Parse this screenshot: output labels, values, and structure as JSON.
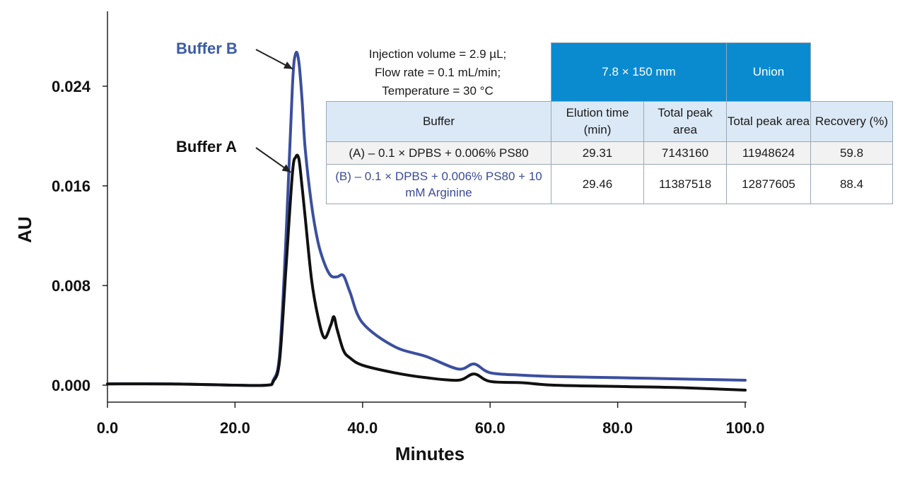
{
  "chart_data": {
    "type": "line",
    "xlabel": "Minutes",
    "ylabel": "AU",
    "xlim": [
      0,
      100
    ],
    "ylim": [
      -0.001,
      0.03
    ],
    "x_ticks": [
      "0.0",
      "20.0",
      "40.0",
      "60.0",
      "80.0",
      "100.0"
    ],
    "y_ticks": [
      "0.000",
      "0.008",
      "0.016",
      "0.024"
    ],
    "grid": false,
    "series": [
      {
        "name": "Buffer B",
        "color": "#3b4f9e",
        "x": [
          0,
          10,
          20,
          25,
          26,
          27,
          28,
          29,
          29.5,
          30,
          30.5,
          31,
          32,
          33,
          34,
          35,
          36,
          37,
          38,
          40,
          45,
          50,
          55,
          57.5,
          60,
          65,
          70,
          80,
          90,
          100
        ],
        "y": [
          0.0001,
          0.0001,
          0.0,
          0.0,
          0.0004,
          0.0025,
          0.012,
          0.024,
          0.0266,
          0.026,
          0.023,
          0.019,
          0.0145,
          0.0115,
          0.0098,
          0.0088,
          0.0087,
          0.0088,
          0.0075,
          0.005,
          0.0031,
          0.0023,
          0.0013,
          0.0017,
          0.001,
          0.0008,
          0.0007,
          0.0006,
          0.0005,
          0.0004
        ]
      },
      {
        "name": "Buffer A",
        "color": "#111111",
        "x": [
          0,
          10,
          20,
          25,
          26,
          27,
          28,
          29,
          29.5,
          30,
          30.5,
          31,
          32,
          33,
          34,
          35,
          35.5,
          36,
          37,
          38,
          40,
          45,
          50,
          55,
          57.5,
          60,
          65,
          70,
          80,
          90,
          100
        ],
        "y": [
          0.0001,
          0.0001,
          0.0,
          0.0,
          0.0003,
          0.002,
          0.0095,
          0.017,
          0.0183,
          0.0182,
          0.016,
          0.0135,
          0.0085,
          0.0055,
          0.0038,
          0.0048,
          0.0055,
          0.0045,
          0.0028,
          0.0022,
          0.0016,
          0.001,
          0.0006,
          0.0004,
          0.0009,
          0.0003,
          0.0002,
          0.0,
          -0.0001,
          -0.0002,
          -0.0004
        ]
      }
    ],
    "annotations": [
      {
        "text": "Buffer B",
        "color": "#3b5ba5",
        "points_to": [
          29.5,
          0.0255
        ]
      },
      {
        "text": "Buffer A",
        "color": "#111111",
        "points_to": [
          29.2,
          0.0172
        ]
      }
    ]
  },
  "conditions": [
    "Injection volume = 2.9 µL;",
    "Flow rate = 0.1 mL/min;",
    "Temperature = 30 °C"
  ],
  "table": {
    "group_headers": [
      "7.8  × 150 mm",
      "Union"
    ],
    "headers": [
      "Buffer",
      "Elution time (min)",
      "Total peak area",
      "Total peak area",
      "Recovery (%)"
    ],
    "rows": [
      [
        "(A) – 0.1 × DPBS + 0.006% PS80",
        "29.31",
        "7143160",
        "11948624",
        "59.8"
      ],
      [
        "(B) – 0.1 × DPBS + 0.006% PS80 + 10 mM Arginine",
        "29.46",
        "11387518",
        "12877605",
        "88.4"
      ]
    ],
    "row_b_text_color": "#3b4b9a",
    "header_color": "#0a8bd0",
    "subheader_color": "#dbe8f5"
  }
}
